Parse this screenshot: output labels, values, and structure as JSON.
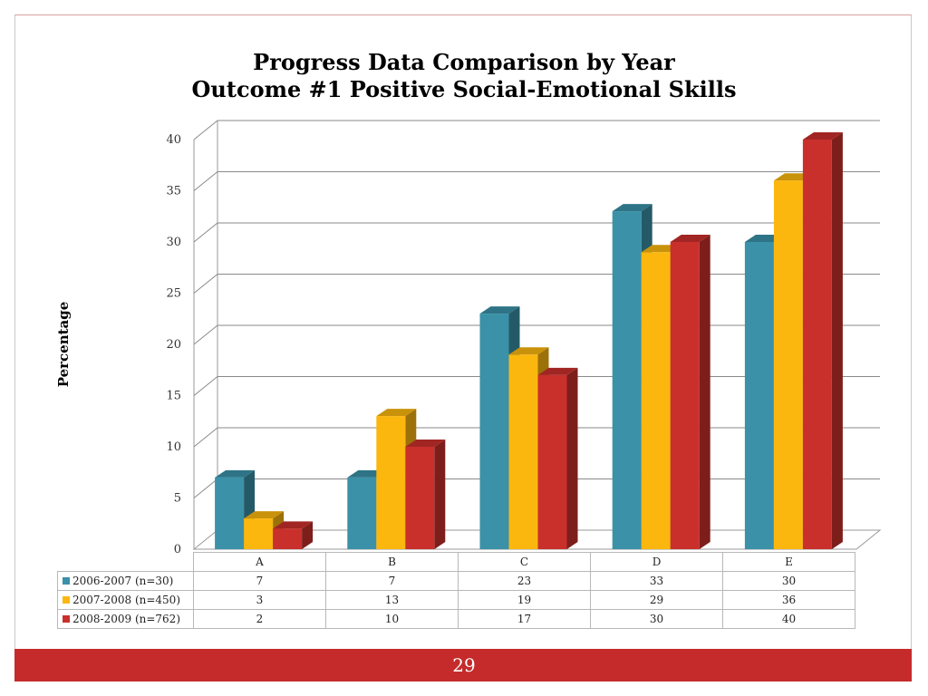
{
  "page_number": "29",
  "colors": {
    "series": [
      "#3a91a8",
      "#fbb70e",
      "#c9302c"
    ],
    "footer": "#c52b2b"
  },
  "chart_data": {
    "type": "bar",
    "title": "Progress Data Comparison by Year",
    "subtitle": "Outcome #1 Positive Social-Emotional Skills",
    "ylabel": "Percentage",
    "xlabel": "",
    "ylim": [
      0,
      40
    ],
    "yticks": [
      "0",
      "5",
      "10",
      "15",
      "20",
      "25",
      "30",
      "35",
      "40"
    ],
    "grid": true,
    "legend": "data-table-below",
    "categories": [
      "A",
      "B",
      "C",
      "D",
      "E"
    ],
    "series": [
      {
        "name": "2006-2007 (n=30)",
        "values": [
          7,
          7,
          23,
          33,
          30
        ],
        "labels": [
          "7",
          "7",
          "23",
          "33",
          "30"
        ]
      },
      {
        "name": "2007-2008 (n=450)",
        "values": [
          3,
          13,
          19,
          29,
          36
        ],
        "labels": [
          "3",
          "13",
          "19",
          "29",
          "36"
        ]
      },
      {
        "name": "2008-2009 (n=762)",
        "values": [
          2,
          10,
          17,
          30,
          40
        ],
        "labels": [
          "2",
          "10",
          "17",
          "30",
          "40"
        ]
      }
    ]
  }
}
